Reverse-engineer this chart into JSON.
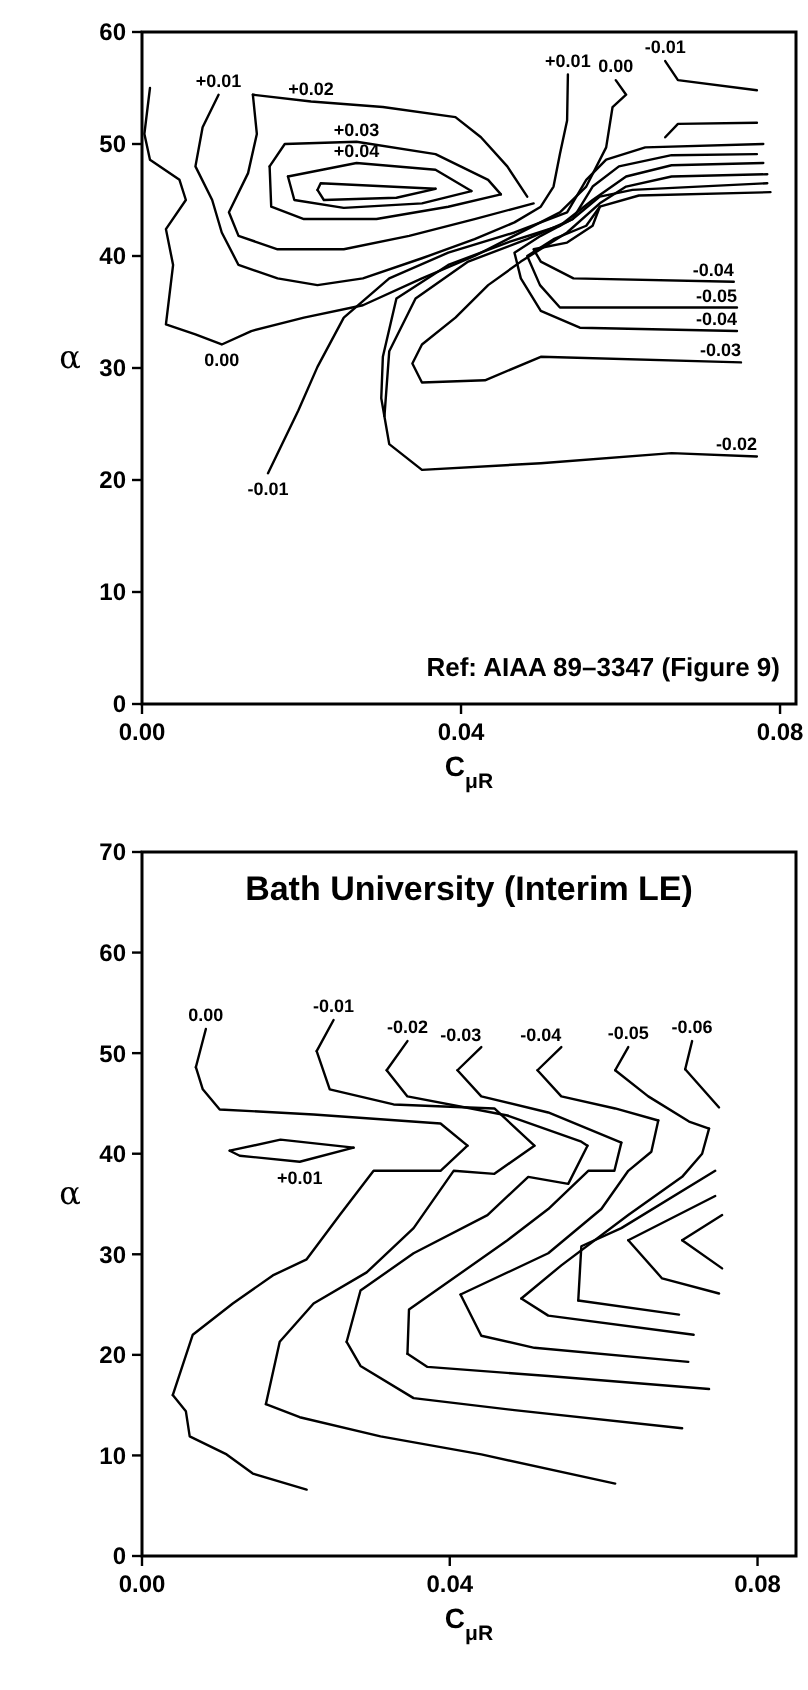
{
  "chart_data": [
    {
      "type": "line",
      "xlabel": "C$_{μR}$",
      "ylabel": "α",
      "xlim": [
        0,
        0.082
      ],
      "ylim": [
        0,
        60
      ],
      "xticks": [
        {
          "value": 0,
          "label": "0.00"
        },
        {
          "value": 0.04,
          "label": "0.04"
        },
        {
          "value": 0.08,
          "label": "0.08"
        }
      ],
      "yticks": [
        0,
        10,
        20,
        30,
        40,
        50,
        60
      ],
      "series": [
        {
          "color": "#000000",
          "x": [
            0.001,
            0.0003,
            0.001,
            0.0047,
            0.0055,
            0.003,
            0.0039,
            0.003,
            0.0067,
            0.01,
            0.0137,
            0.0203,
            0.0277,
            0.0351,
            0.0417,
            0.0483,
            0.0524,
            0.0557,
            0.0582,
            0.059,
            0.0607,
            0.0594
          ],
          "values": [
            55,
            50.9,
            48.6,
            46.8,
            45,
            42.4,
            39.2,
            33.9,
            33,
            32.1,
            33.3,
            34.5,
            35.6,
            38,
            40,
            42.4,
            43.9,
            46.2,
            49.7,
            53.3,
            54.4,
            55.7
          ]
        },
        {
          "color": "#000000",
          "x": [
            0.0096,
            0.0076,
            0.0067,
            0.0088,
            0.01,
            0.0121,
            0.017,
            0.022,
            0.0277,
            0.0351,
            0.0417,
            0.0467,
            0.05,
            0.0516,
            0.0524,
            0.0533,
            0.0534
          ],
          "values": [
            54.4,
            51.5,
            48,
            45,
            42.1,
            39.2,
            38,
            37.4,
            38,
            39.8,
            41.5,
            43,
            44.4,
            46.2,
            49.1,
            52.1,
            56.2
          ]
        },
        {
          "color": "#000000",
          "x": [
            0.0483,
            0.0458,
            0.0425,
            0.0393,
            0.0302,
            0.0212,
            0.0139
          ],
          "values": [
            45.3,
            48,
            50.6,
            52.4,
            53.3,
            53.8,
            54.4
          ]
        },
        {
          "color": "#000000",
          "x": [
            0.0139,
            0.0144,
            0.0133,
            0.0109,
            0.0121,
            0.017,
            0.0253,
            0.0335,
            0.0417,
            0.0491
          ],
          "values": [
            54.4,
            50.9,
            47.4,
            43.9,
            41.8,
            40.6,
            40.6,
            41.8,
            43.3,
            44.7
          ]
        },
        {
          "color": "#000000",
          "x": [
            0.016,
            0.0179,
            0.0269,
            0.0368,
            0.0434,
            0.045
          ],
          "values": [
            48,
            50,
            50.2,
            49.1,
            46.8,
            45.5
          ]
        },
        {
          "color": "#000000",
          "x": [
            0.045,
            0.0384,
            0.0294,
            0.0203,
            0.0162,
            0.016
          ],
          "values": [
            45.5,
            44.4,
            43.3,
            43.3,
            44.4,
            48
          ]
        },
        {
          "color": "#000000",
          "x": [
            0.0183,
            0.0269,
            0.0368,
            0.0413
          ],
          "values": [
            47.1,
            48.3,
            47.7,
            45.8
          ]
        },
        {
          "color": "#000000",
          "x": [
            0.0413,
            0.0351,
            0.0253,
            0.0191,
            0.0183
          ],
          "values": [
            45.8,
            44.7,
            44.3,
            45,
            47.1
          ]
        },
        {
          "color": "#000000",
          "x": [
            0.022,
            0.0224,
            0.0368
          ],
          "values": [
            45.9,
            46.5,
            46
          ]
        },
        {
          "color": "#000000",
          "x": [
            0.0368,
            0.0319,
            0.0228,
            0.022
          ],
          "values": [
            46,
            45.2,
            45,
            45.9
          ]
        },
        {
          "color": "#000000",
          "x": [
            0.0656,
            0.0672,
            0.0771
          ],
          "values": [
            57.4,
            55.7,
            54.8
          ]
        },
        {
          "color": "#000000",
          "x": [
            0.0656,
            0.0672,
            0.0771
          ],
          "values": [
            50.6,
            51.8,
            51.9
          ]
        },
        {
          "color": "#000000",
          "x": [
            0.0158,
            0.0196,
            0.022,
            0.0253,
            0.031,
            0.0384,
            0.0467,
            0.0533,
            0.0557,
            0.0582,
            0.0631,
            0.0779
          ],
          "values": [
            20.6,
            26.2,
            30.1,
            34.5,
            38,
            40.3,
            42.1,
            43.9,
            46.8,
            48.6,
            49.7,
            50
          ]
        },
        {
          "color": "#000000",
          "x": [
            0.0304,
            0.031,
            0.0343,
            0.0409,
            0.0483,
            0.054,
            0.0565,
            0.0598,
            0.0664,
            0.0771
          ],
          "values": [
            25.7,
            31.5,
            36.2,
            39.5,
            41.5,
            43.3,
            46.2,
            48,
            49,
            49.1
          ]
        },
        {
          "color": "#000000",
          "x": [
            0.0771,
            0.0664,
            0.05,
            0.0351,
            0.031,
            0.03,
            0.0302,
            0.0319,
            0.0384,
            0.0458,
            0.0524,
            0.0565,
            0.0607,
            0.0664,
            0.0779
          ],
          "values": [
            22.1,
            22.4,
            21.5,
            20.9,
            23.2,
            27.3,
            31,
            36.2,
            39.2,
            41.2,
            42.7,
            45,
            47.1,
            48.1,
            48.3
          ]
        },
        {
          "color": "#000000",
          "x": [
            0.0751,
            0.05,
            0.043,
            0.0351,
            0.0339,
            0.0351,
            0.0393,
            0.0434,
            0.0475,
            0.0533,
            0.0574,
            0.0607,
            0.0664,
            0.0784
          ],
          "values": [
            30.5,
            31,
            28.9,
            28.7,
            30.4,
            32.1,
            34.5,
            37.4,
            39.5,
            42.1,
            44.7,
            46.2,
            47.1,
            47.3
          ]
        },
        {
          "color": "#000000",
          "x": [
            0.0746,
            0.0549,
            0.05,
            0.0475,
            0.0467,
            0.05,
            0.054,
            0.0574,
            0.0615,
            0.0784
          ],
          "values": [
            33.3,
            33.6,
            35.1,
            38,
            40.3,
            41.8,
            43.3,
            45.3,
            45.9,
            46.5
          ]
        },
        {
          "color": "#000000",
          "x": [
            0.0746,
            0.0524,
            0.0499,
            0.0483,
            0.0516,
            0.0557,
            0.0574,
            0.0623,
            0.0788
          ],
          "values": [
            35.4,
            35.4,
            37.4,
            40,
            41.5,
            42.7,
            44.4,
            45.4,
            45.7
          ]
        },
        {
          "color": "#000000",
          "x": [
            0.0742,
            0.0541,
            0.05,
            0.0491,
            0.0533,
            0.0565,
            0.0574
          ],
          "values": [
            37.7,
            38,
            39.5,
            40.6,
            41.2,
            42.7,
            44.4
          ]
        }
      ],
      "annotations": [
        {
          "text": "+0.01",
          "x": 0.0096,
          "y": 54.4
        },
        {
          "text": "+0.02",
          "x": 0.0212,
          "y": 53.8
        },
        {
          "text": "+0.03",
          "x": 0.0269,
          "y": 50.2
        },
        {
          "text": "+0.04",
          "x": 0.0269,
          "y": 48.3
        },
        {
          "text": "+0.01",
          "x": 0.0534,
          "y": 56.2
        },
        {
          "text": "0.00",
          "x": 0.0594,
          "y": 55.7
        },
        {
          "text": "-0.01",
          "x": 0.0656,
          "y": 57.4
        },
        {
          "text": "-0.04",
          "x": 0.0742,
          "y": 37.7
        },
        {
          "text": "-0.05",
          "x": 0.0746,
          "y": 35.4
        },
        {
          "text": "-0.04",
          "x": 0.0746,
          "y": 33.3
        },
        {
          "text": "-0.03",
          "x": 0.0751,
          "y": 30.5
        },
        {
          "text": "0.00",
          "x": 0.01,
          "y": 32.1
        },
        {
          "text": "-0.01",
          "x": 0.0158,
          "y": 20.6
        },
        {
          "text": "-0.02",
          "x": 0.0771,
          "y": 22.1
        },
        "Ref: AIAA 89–3347 (Figure 9)"
      ]
    },
    {
      "type": "line",
      "title": "Bath University (Interim LE)",
      "xlabel": "C$_{μR}$",
      "ylabel": "α",
      "xlim": [
        0,
        0.085
      ],
      "ylim": [
        0,
        70
      ],
      "xticks": [
        {
          "value": 0,
          "label": "0.00"
        },
        {
          "value": 0.04,
          "label": "0.04"
        },
        {
          "value": 0.08,
          "label": "0.08"
        }
      ],
      "yticks": [
        0,
        10,
        20,
        30,
        40,
        50,
        60,
        70
      ],
      "series": [
        {
          "color": "#000000",
          "x": [
            0.0083,
            0.007
          ],
          "values": [
            52.4,
            48.6
          ]
        },
        {
          "color": "#000000",
          "x": [
            0.007,
            0.0079,
            0.0101,
            0.0223,
            0.0388,
            0.0423
          ],
          "values": [
            48.6,
            46.4,
            44.4,
            43.9,
            43,
            40.8
          ]
        },
        {
          "color": "#000000",
          "x": [
            0.0423,
            0.0388,
            0.0301,
            0.0257,
            0.0214,
            0.017,
            0.0118,
            0.0066,
            0.004
          ],
          "values": [
            40.8,
            38.3,
            38.3,
            33.9,
            29.5,
            27.9,
            25.1,
            22,
            16
          ]
        },
        {
          "color": "#000000",
          "x": [
            0.004,
            0.0057,
            0.0062,
            0.011,
            0.0144,
            0.0214
          ],
          "values": [
            16,
            14.4,
            11.9,
            10.1,
            8.2,
            6.6
          ]
        },
        {
          "color": "#000000",
          "x": [
            0.0114,
            0.018,
            0.0275
          ],
          "values": [
            40.3,
            41.4,
            40.6
          ]
        },
        {
          "color": "#000000",
          "x": [
            0.0275,
            0.0205,
            0.0127,
            0.0114
          ],
          "values": [
            40.6,
            39.2,
            39.8,
            40.3
          ]
        },
        {
          "color": "#000000",
          "x": [
            0.0249,
            0.0227
          ],
          "values": [
            53.3,
            50.2
          ]
        },
        {
          "color": "#000000",
          "x": [
            0.0227,
            0.0244,
            0.0327,
            0.0458,
            0.051
          ],
          "values": [
            50.2,
            46.4,
            44.9,
            44.5,
            40.8
          ]
        },
        {
          "color": "#000000",
          "x": [
            0.051,
            0.0458,
            0.0405,
            0.0353,
            0.0292,
            0.0223,
            0.0179,
            0.0161
          ],
          "values": [
            40.8,
            38,
            38.3,
            32.6,
            28.2,
            25.1,
            21.3,
            15.1
          ]
        },
        {
          "color": "#000000",
          "x": [
            0.0161,
            0.0205,
            0.031,
            0.0441,
            0.0615
          ],
          "values": [
            15.1,
            13.8,
            11.9,
            10.1,
            7.2
          ]
        },
        {
          "color": "#000000",
          "x": [
            0.0345,
            0.0318
          ],
          "values": [
            51.2,
            48.3
          ]
        },
        {
          "color": "#000000",
          "x": [
            0.0318,
            0.0345,
            0.0475,
            0.0571,
            0.0579
          ],
          "values": [
            48.3,
            45.7,
            43.8,
            41.2,
            40.8
          ]
        },
        {
          "color": "#000000",
          "x": [
            0.0579,
            0.0554,
            0.0502,
            0.0449,
            0.0353,
            0.0284,
            0.0266
          ],
          "values": [
            40.8,
            37,
            37.7,
            33.9,
            30.1,
            26.4,
            21.3
          ]
        },
        {
          "color": "#000000",
          "x": [
            0.0266,
            0.0284,
            0.0353,
            0.0484,
            0.0702
          ],
          "values": [
            21.3,
            18.9,
            15.7,
            14.5,
            12.7
          ]
        },
        {
          "color": "#000000",
          "x": [
            0.0441,
            0.041
          ],
          "values": [
            50.6,
            48.3
          ]
        },
        {
          "color": "#000000",
          "x": [
            0.041,
            0.0441,
            0.0528,
            0.0623
          ],
          "values": [
            48.3,
            45.7,
            44.1,
            41.1
          ]
        },
        {
          "color": "#000000",
          "x": [
            0.0623,
            0.0614,
            0.058,
            0.0528,
            0.0475,
            0.0347,
            0.0345
          ],
          "values": [
            41.1,
            38.3,
            38.3,
            34.5,
            31.4,
            24.5,
            20.1
          ]
        },
        {
          "color": "#000000",
          "x": [
            0.0345,
            0.0371,
            0.0528,
            0.0737
          ],
          "values": [
            20.1,
            18.8,
            17.9,
            16.6
          ]
        },
        {
          "color": "#000000",
          "x": [
            0.0545,
            0.0514
          ],
          "values": [
            50.6,
            48.3
          ]
        },
        {
          "color": "#000000",
          "x": [
            0.0514,
            0.0545,
            0.0615,
            0.0671
          ],
          "values": [
            48.3,
            45.7,
            44.5,
            43.3
          ]
        },
        {
          "color": "#000000",
          "x": [
            0.0671,
            0.0662,
            0.0632,
            0.0597,
            0.0528,
            0.0414
          ],
          "values": [
            43.3,
            40.2,
            38.3,
            34.5,
            30.1,
            26
          ]
        },
        {
          "color": "#000000",
          "x": [
            0.0414,
            0.0441,
            0.051,
            0.071
          ],
          "values": [
            26,
            21.9,
            20.7,
            19.3
          ]
        },
        {
          "color": "#000000",
          "x": [
            0.0632,
            0.0615
          ],
          "values": [
            50.6,
            48.3
          ]
        },
        {
          "color": "#000000",
          "x": [
            0.0615,
            0.0658,
            0.0711,
            0.0737
          ],
          "values": [
            48.3,
            45.7,
            43.2,
            42.5
          ]
        },
        {
          "color": "#000000",
          "x": [
            0.0737,
            0.0728,
            0.0702,
            0.0632,
            0.0545,
            0.0493
          ],
          "values": [
            42.5,
            40,
            37.7,
            33.9,
            28.9,
            25.6
          ]
        },
        {
          "color": "#000000",
          "x": [
            0.0493,
            0.0528,
            0.0717
          ],
          "values": [
            25.6,
            23.9,
            22
          ]
        },
        {
          "color": "#000000",
          "x": [
            0.0715,
            0.0706
          ],
          "values": [
            51.2,
            48.4
          ]
        },
        {
          "color": "#000000",
          "x": [
            0.0706,
            0.075
          ],
          "values": [
            48.4,
            44.6
          ]
        },
        {
          "color": "#000000",
          "x": [
            0.0745,
            0.0623,
            0.0571,
            0.0567
          ],
          "values": [
            38.3,
            32.6,
            30.8,
            25.4
          ]
        },
        {
          "color": "#000000",
          "x": [
            0.0567,
            0.0698
          ],
          "values": [
            25.4,
            24
          ]
        },
        {
          "color": "#000000",
          "x": [
            0.0745,
            0.0632
          ],
          "values": [
            35.8,
            31.4
          ]
        },
        {
          "color": "#000000",
          "x": [
            0.0632,
            0.0676,
            0.075
          ],
          "values": [
            31.4,
            27.6,
            26.1
          ]
        },
        {
          "color": "#000000",
          "x": [
            0.0754,
            0.0702
          ],
          "values": [
            33.9,
            31.4
          ]
        },
        {
          "color": "#000000",
          "x": [
            0.0702,
            0.0754
          ],
          "values": [
            31.4,
            28.6
          ]
        }
      ],
      "annotations": [
        {
          "text": "0.00",
          "x": 0.0083,
          "y": 52.4
        },
        {
          "text": "-0.01",
          "x": 0.0249,
          "y": 53.3
        },
        {
          "text": "-0.02",
          "x": 0.0345,
          "y": 51.2
        },
        {
          "text": "-0.03",
          "x": 0.0441,
          "y": 50.6
        },
        {
          "text": "-0.04",
          "x": 0.0545,
          "y": 50.6
        },
        {
          "text": "-0.05",
          "x": 0.0632,
          "y": 50.6
        },
        {
          "text": "-0.06",
          "x": 0.0715,
          "y": 51.2
        },
        {
          "text": "+0.01",
          "x": 0.0205,
          "y": 39.2
        }
      ]
    }
  ]
}
